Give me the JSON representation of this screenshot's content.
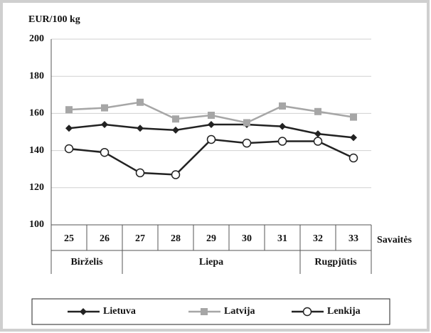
{
  "chart_data": {
    "type": "line",
    "y_label": "EUR/100 kg",
    "x_label": "Savaitės",
    "categories": [
      "25",
      "26",
      "27",
      "28",
      "29",
      "30",
      "31",
      "32",
      "33"
    ],
    "months": [
      {
        "name": "Birželis",
        "weeks": 2
      },
      {
        "name": "Liepa",
        "weeks": 5
      },
      {
        "name": "Rugpjūtis",
        "weeks": 2
      }
    ],
    "series": [
      {
        "name": "Lietuva",
        "color": "#222222",
        "marker": "diamond",
        "values": [
          152,
          154,
          152,
          151,
          154,
          154,
          153,
          149,
          147
        ]
      },
      {
        "name": "Latvija",
        "color": "#a6a6a6",
        "marker": "square",
        "values": [
          162,
          163,
          166,
          157,
          159,
          155,
          164,
          161,
          158
        ]
      },
      {
        "name": "Lenkija",
        "color": "#222222",
        "marker": "circle",
        "values": [
          141,
          139,
          128,
          127,
          146,
          144,
          145,
          145,
          136
        ]
      }
    ],
    "ylim": [
      100,
      200
    ],
    "yticks": [
      100,
      120,
      140,
      160,
      180,
      200
    ],
    "grid": true
  }
}
